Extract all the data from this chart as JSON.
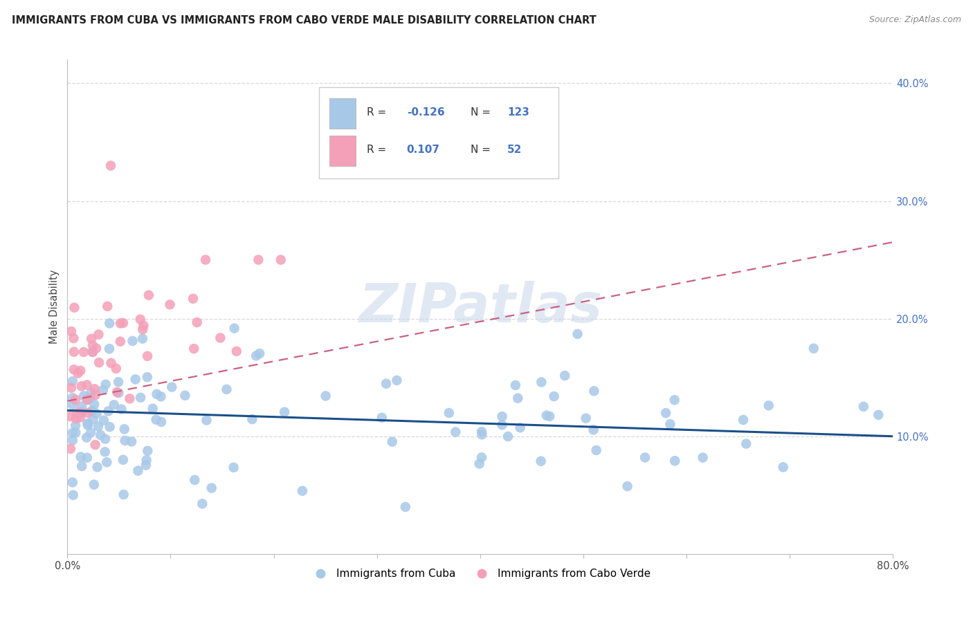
{
  "title": "IMMIGRANTS FROM CUBA VS IMMIGRANTS FROM CABO VERDE MALE DISABILITY CORRELATION CHART",
  "source": "Source: ZipAtlas.com",
  "ylabel": "Male Disability",
  "xlim": [
    0.0,
    0.8
  ],
  "ylim": [
    0.0,
    0.42
  ],
  "cuba_color": "#a8c8e8",
  "cabo_verde_color": "#f4a0b8",
  "cuba_line_color": "#1a4f8a",
  "cabo_verde_line_color": "#cc6080",
  "background_color": "#ffffff",
  "grid_color": "#d8d8d8",
  "watermark_color": "#c8d8ea",
  "legend_R_cuba": "-0.126",
  "legend_N_cuba": "123",
  "legend_R_cabo": "0.107",
  "legend_N_cabo": "52",
  "tick_label_color": "#4472c4",
  "cuba_trendline_start_y": 0.122,
  "cuba_trendline_end_y": 0.1,
  "cabo_trendline_start_y": 0.13,
  "cabo_trendline_end_y": 0.265
}
